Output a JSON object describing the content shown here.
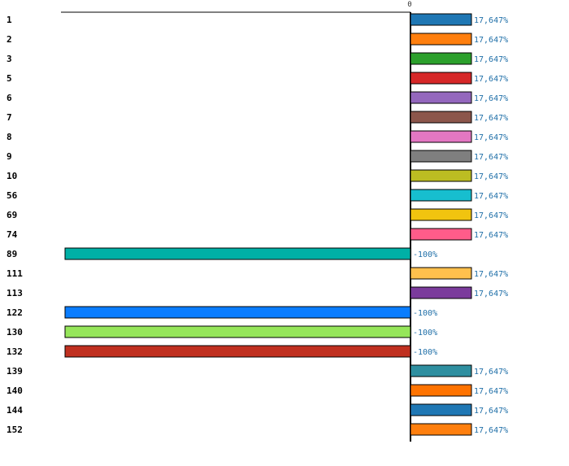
{
  "chart_data": {
    "type": "bar",
    "orientation": "horizontal",
    "categories": [
      "1",
      "2",
      "3",
      "5",
      "6",
      "7",
      "8",
      "9",
      "10",
      "56",
      "69",
      "74",
      "89",
      "111",
      "113",
      "122",
      "130",
      "132",
      "139",
      "140",
      "144",
      "152"
    ],
    "values": [
      17.647,
      17.647,
      17.647,
      17.647,
      17.647,
      17.647,
      17.647,
      17.647,
      17.647,
      17.647,
      17.647,
      17.647,
      -100,
      17.647,
      17.647,
      -100,
      -100,
      -100,
      17.647,
      17.647,
      17.647,
      17.647
    ],
    "value_labels": [
      "17,647%",
      "17,647%",
      "17,647%",
      "17,647%",
      "17,647%",
      "17,647%",
      "17,647%",
      "17,647%",
      "17,647%",
      "17,647%",
      "17,647%",
      "17,647%",
      "-100%",
      "17,647%",
      "17,647%",
      "-100%",
      "-100%",
      "-100%",
      "17,647%",
      "17,647%",
      "17,647%",
      "17,647%"
    ],
    "colors": [
      "#1f77b4",
      "#ff7f0e",
      "#2ca02c",
      "#d62728",
      "#9467bd",
      "#8c564b",
      "#e377c2",
      "#7f7f7f",
      "#bcbd22",
      "#17becf",
      "#f1c40f",
      "#ff5c8a",
      "#00b0a6",
      "#ffc04d",
      "#7b3b9c",
      "#0a7dff",
      "#96e65a",
      "#c03020",
      "#2e8fa0",
      "#ff7300",
      "#1f77b4",
      "#ff7f0e"
    ],
    "zero_label": "0",
    "xlim": [
      -100,
      17.647
    ],
    "grid": false,
    "title": "",
    "xlabel": "",
    "ylabel": ""
  }
}
